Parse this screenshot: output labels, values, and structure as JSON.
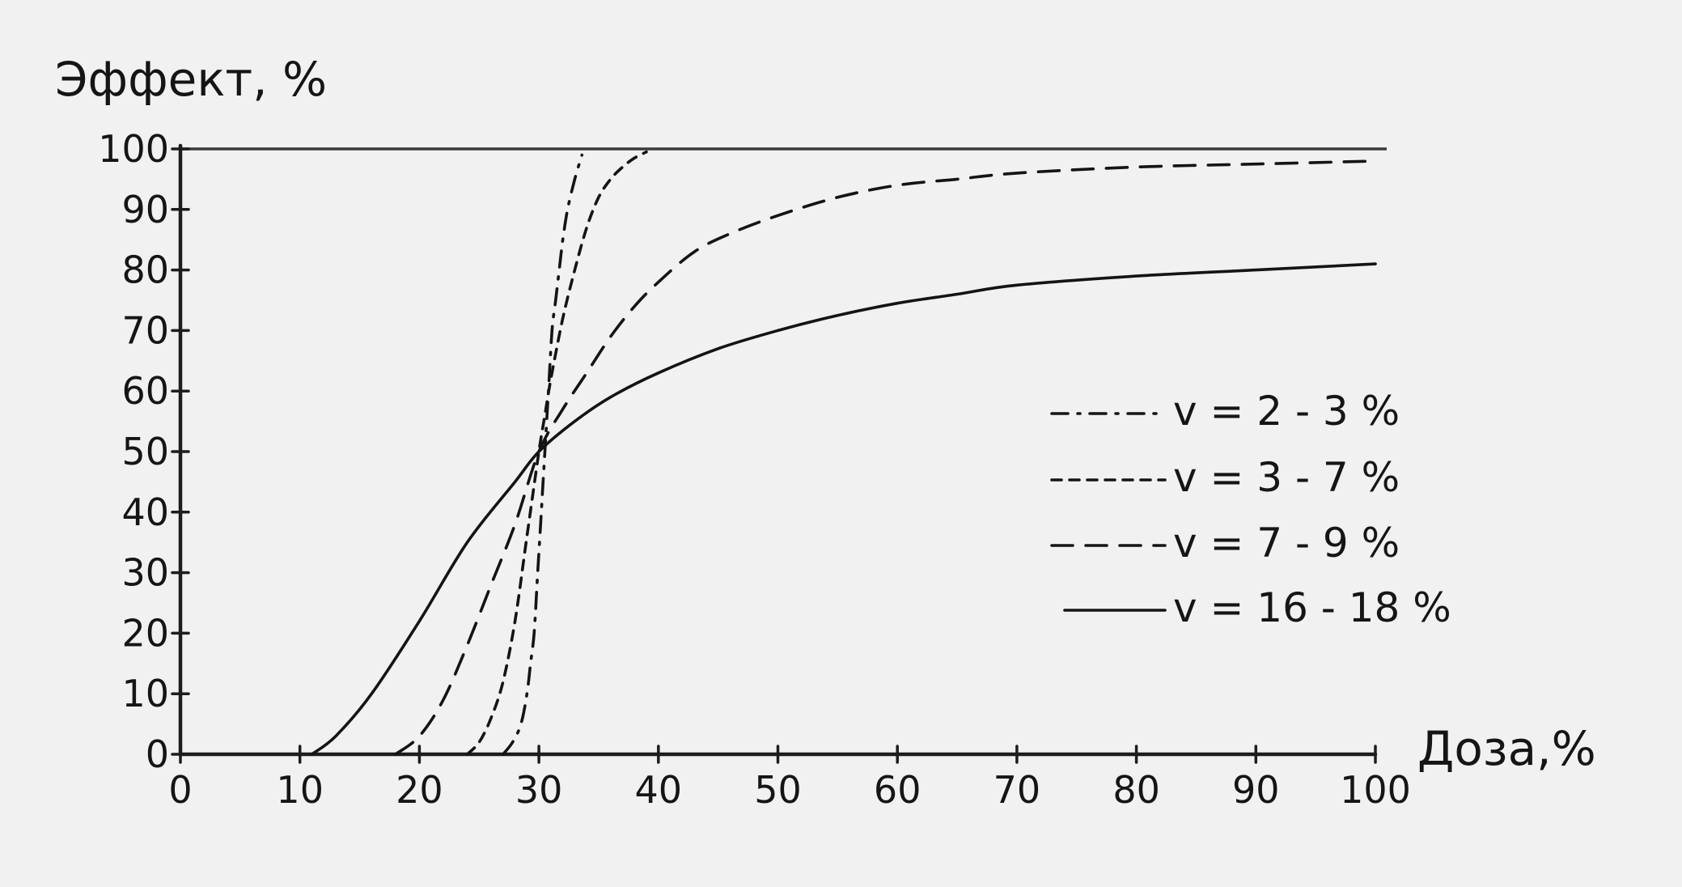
{
  "chart_data": {
    "type": "line",
    "title": "",
    "xlabel": "Доза,%",
    "ylabel": "Эффект, %",
    "xlim": [
      0,
      100
    ],
    "ylim": [
      0,
      100
    ],
    "x_ticks": [
      0,
      10,
      20,
      30,
      40,
      50,
      60,
      70,
      80,
      90,
      100
    ],
    "y_ticks": [
      0,
      10,
      20,
      30,
      40,
      50,
      60,
      70,
      80,
      90,
      100
    ],
    "x_tick_labels": [
      "0",
      "10",
      "20",
      "30",
      "40",
      "50",
      "60",
      "70",
      "80",
      "90",
      "100"
    ],
    "y_tick_labels": [
      "0",
      "10",
      "20",
      "30",
      "40",
      "50",
      "60",
      "70",
      "80",
      "90",
      "100"
    ],
    "grid": false,
    "legend_position": "right",
    "reference_line": {
      "y": 100
    },
    "series": [
      {
        "name": "v = 2 - 3 %",
        "style": "dashdot",
        "x": [
          27,
          27.8,
          28.5,
          29.0,
          29.3,
          29.6,
          29.9,
          30.2,
          30.5,
          30.8,
          31.1,
          31.4,
          31.7,
          32.0,
          32.4,
          33.0,
          33.6
        ],
        "y": [
          0,
          2,
          5,
          10,
          15,
          20,
          30,
          40,
          50,
          60,
          70,
          75,
          80,
          85,
          90,
          95,
          99
        ]
      },
      {
        "name": "v = 3 - 7 %",
        "style": "dashed-short",
        "x": [
          24,
          25,
          26,
          27,
          28,
          29,
          30,
          30.5,
          31,
          32,
          33,
          34,
          35,
          36,
          37,
          38,
          39
        ],
        "y": [
          0,
          2,
          6,
          12,
          22,
          36,
          50,
          56,
          62,
          72,
          80,
          87,
          92,
          95,
          97,
          98.5,
          99.5
        ]
      },
      {
        "name": "v = 7 - 9 %",
        "style": "dashed-long",
        "x": [
          18,
          20,
          22,
          24,
          26,
          28,
          30,
          32,
          34,
          36,
          38,
          40,
          43,
          46,
          50,
          55,
          60,
          65,
          70,
          80,
          90,
          100
        ],
        "y": [
          0,
          3,
          9,
          18,
          28,
          38,
          50,
          57,
          63,
          69,
          74,
          78,
          83,
          86,
          89,
          92,
          94,
          95,
          96,
          97,
          97.5,
          98
        ]
      },
      {
        "name": "v = 16 - 18 %",
        "style": "solid",
        "x": [
          11,
          13,
          16,
          20,
          24,
          28,
          30,
          33,
          36,
          40,
          45,
          50,
          55,
          60,
          65,
          70,
          80,
          90,
          100
        ],
        "y": [
          0,
          3,
          10,
          22,
          35,
          45,
          50,
          55,
          59,
          63,
          67,
          70,
          72.5,
          74.5,
          76,
          77.5,
          79,
          80,
          81
        ]
      }
    ]
  }
}
